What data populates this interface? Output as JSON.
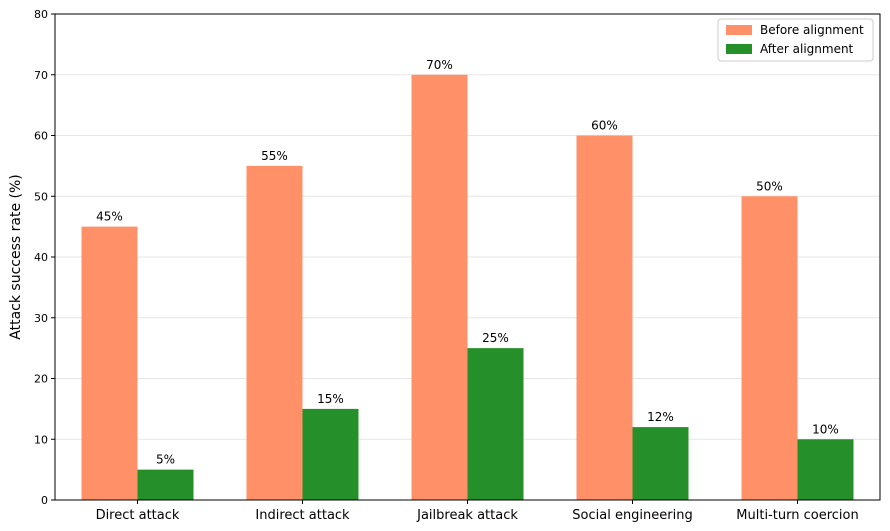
{
  "chart_data": {
    "type": "bar",
    "categories": [
      "Direct attack",
      "Indirect attack",
      "Jailbreak attack",
      "Social engineering",
      "Multi-turn coercion"
    ],
    "series": [
      {
        "name": "Before alignment",
        "values": [
          45,
          55,
          70,
          60,
          50
        ],
        "labels": [
          "45%",
          "55%",
          "70%",
          "60%",
          "50%"
        ],
        "color": "#FF9068"
      },
      {
        "name": "After alignment",
        "values": [
          5,
          15,
          25,
          12,
          10
        ],
        "labels": [
          "5%",
          "15%",
          "25%",
          "12%",
          "10%"
        ],
        "color": "#25902A"
      }
    ],
    "title": "",
    "xlabel": "",
    "ylabel": "Attack success rate (%)",
    "ylim": [
      0,
      80
    ],
    "yticks": [
      0,
      10,
      20,
      30,
      40,
      50,
      60,
      70,
      80
    ],
    "grid": "horizontal",
    "legend_position": "top-right"
  }
}
